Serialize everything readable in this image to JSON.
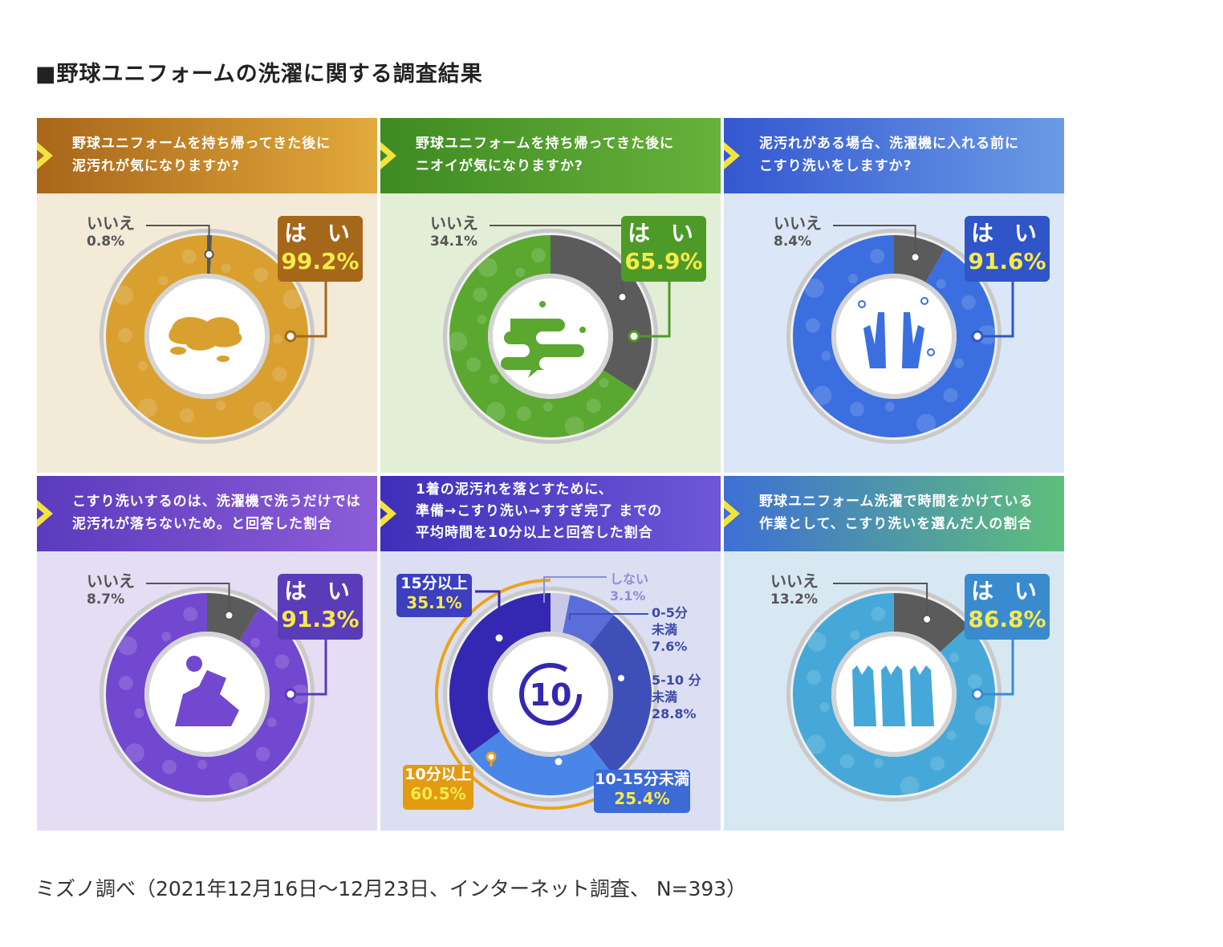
{
  "page": {
    "title": "■野球ユニフォームの洗濯に関する調査結果",
    "footnote": "ミズノ調べ（2021年12月16日〜12月23日、インターネット調査、 N=393）"
  },
  "panels": [
    {
      "question_line1": "野球ユニフォームを持ち帰ってきた後に",
      "question_line2": "泥汚れが気になりますか?",
      "no_label": "いいえ",
      "no_value": "0.8%",
      "yes_label": "は い",
      "yes_value": "99.2%",
      "header_color": "#c47f1a",
      "ring_color": "#d9a030",
      "box_color": "#a5671a",
      "icon": "mud-stain-icon"
    },
    {
      "question_line1": "野球ユニフォームを持ち帰ってきた後に",
      "question_line2": "ニオイが気になりますか?",
      "no_label": "いいえ",
      "no_value": "34.1%",
      "yes_label": "は い",
      "yes_value": "65.9%",
      "header_color": "#4f9a2a",
      "ring_color": "#5aa82f",
      "box_color": "#4e9a28",
      "icon": "odor-cloud-icon"
    },
    {
      "question_line1": "泥汚れがある場合、洗濯機に入れる前に",
      "question_line2": "こすり洗いをしますか?",
      "no_label": "いいえ",
      "no_value": "8.4%",
      "yes_label": "は い",
      "yes_value": "91.6%",
      "header_color": "#3f6ad8",
      "ring_color": "#3b6fe0",
      "box_color": "#2f55c9",
      "icon": "scrubbing-hands-icon"
    },
    {
      "question_line1": "こすり洗いするのは、洗濯機で洗うだけでは",
      "question_line2": "泥汚れが落ちないため。と回答した割合",
      "no_label": "いいえ",
      "no_value": "8.7%",
      "yes_label": "は い",
      "yes_value": "91.3%",
      "header_color": "#6a48c8",
      "ring_color": "#7148cf",
      "box_color": "#5a3bb8",
      "icon": "dirty-laundry-icon"
    },
    {
      "question_line1": "1着の泥汚れを落とすために、",
      "question_line2": "準備→こすり洗い→すすぎ完了 までの",
      "question_line3": "平均時間を10分以上と回答した割合",
      "header_color": "#4a3fc4",
      "icon": "ten-minutes-icon",
      "center_text": "10"
    },
    {
      "question_line1": "野球ユニフォーム洗濯で時間をかけている",
      "question_line2": "作業として、こすり洗いを選んだ人の割合",
      "no_label": "いいえ",
      "no_value": "13.2%",
      "yes_label": "は い",
      "yes_value": "86.8%",
      "header_color": "#3f7fd8",
      "ring_color": "#45a8d8",
      "box_color": "#3a8ad0",
      "icon": "rinsing-uniforms-icon"
    }
  ],
  "time_labels": {
    "over15_label": "15分以上",
    "over15_value": "35.1%",
    "none_label": "しない",
    "none_value": "3.1%",
    "min0_5_label1": "0-5分",
    "min0_5_label2": "未満",
    "min0_5_value": "7.6%",
    "min5_10_label1": "5-10 分",
    "min5_10_label2": "未満",
    "min5_10_value": "28.8%",
    "min10_15_label": "10-15分未満",
    "min10_15_value": "25.4%",
    "over10_label": "10分以上",
    "over10_value": "60.5%"
  },
  "chart_data": [
    {
      "type": "pie",
      "categories": [
        "いいえ",
        "はい"
      ],
      "values": [
        0.8,
        99.2
      ]
    },
    {
      "type": "pie",
      "categories": [
        "いいえ",
        "はい"
      ],
      "values": [
        34.1,
        65.9
      ]
    },
    {
      "type": "pie",
      "categories": [
        "いいえ",
        "はい"
      ],
      "values": [
        8.4,
        91.6
      ]
    },
    {
      "type": "pie",
      "categories": [
        "いいえ",
        "はい"
      ],
      "values": [
        8.7,
        91.3
      ]
    },
    {
      "type": "pie",
      "categories": [
        "しない",
        "0-5分未満",
        "5-10分未満",
        "10-15分未満",
        "15分以上"
      ],
      "values": [
        3.1,
        7.6,
        28.8,
        25.4,
        35.1
      ],
      "annotations": [
        {
          "label": "10分以上",
          "value": 60.5
        }
      ]
    },
    {
      "type": "pie",
      "categories": [
        "いいえ",
        "はい"
      ],
      "values": [
        13.2,
        86.8
      ]
    }
  ]
}
